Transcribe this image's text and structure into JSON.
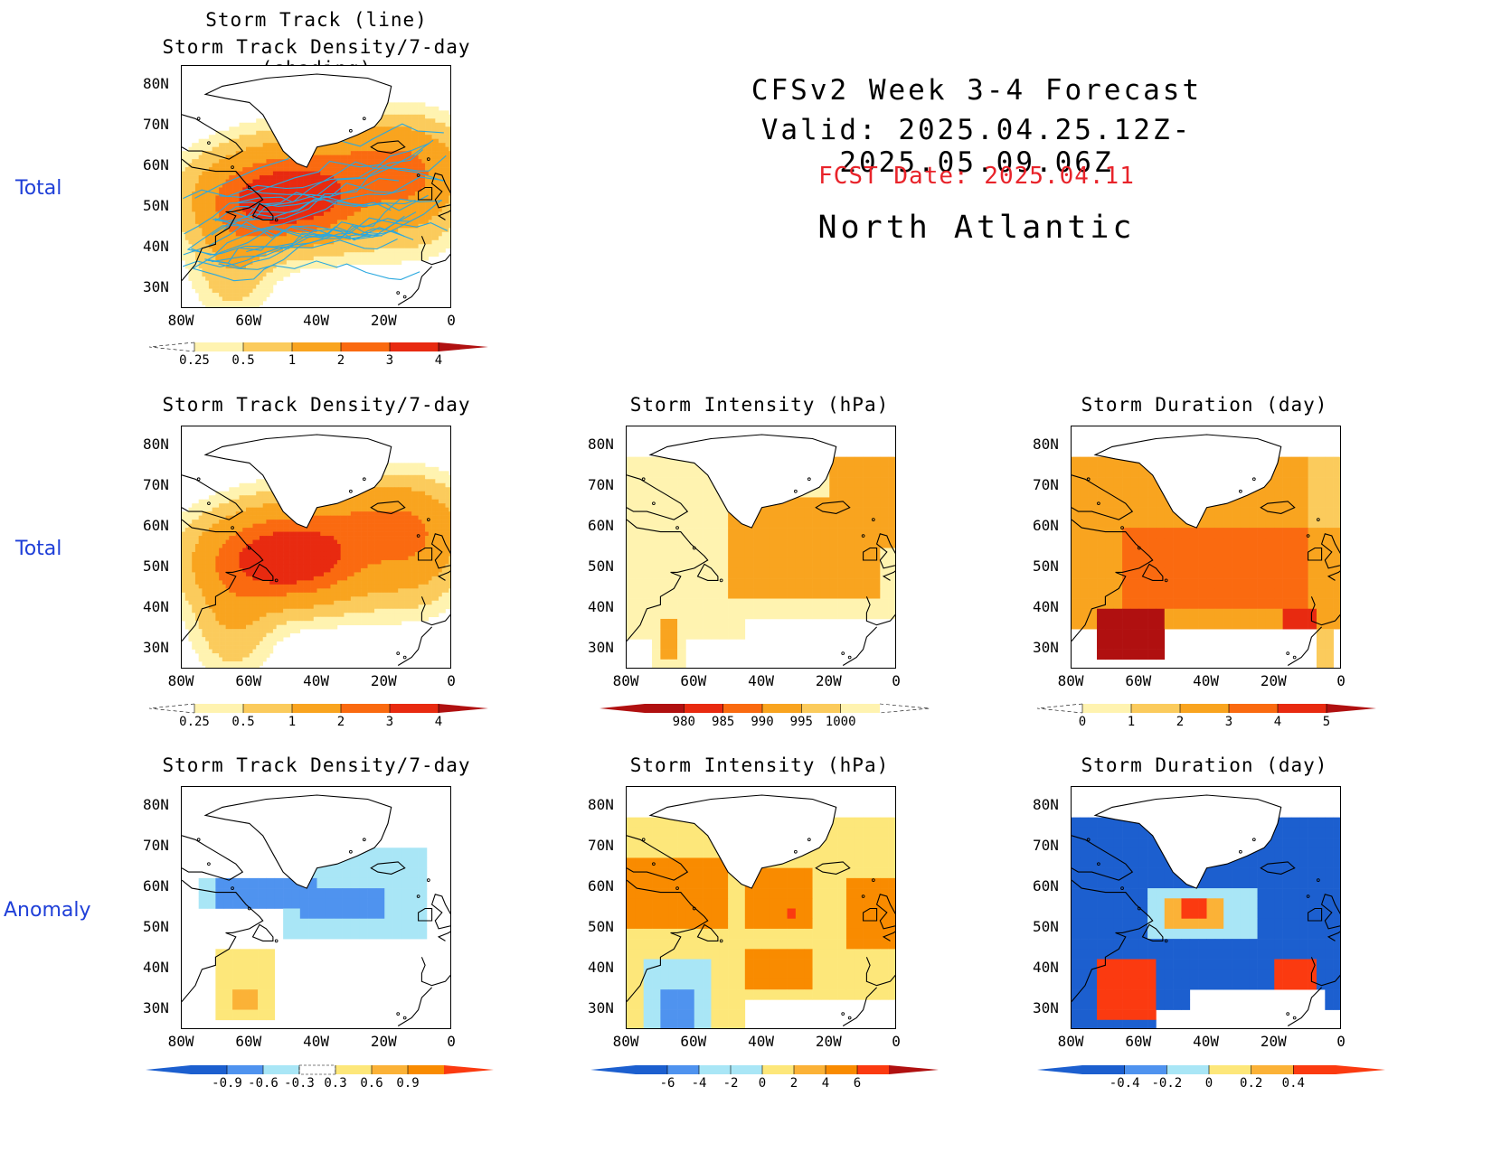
{
  "header": {
    "line1": "CFSv2 Week 3-4 Forecast",
    "line2": "Valid: 2025.04.25.12Z-2025.05.09.06Z",
    "fcst_date": "FCST Date: 2025.04.11",
    "region": "North Atlantic"
  },
  "row_labels": [
    "Total",
    "Total",
    "Anomaly"
  ],
  "axes": {
    "lat_ticks": [
      "80N",
      "70N",
      "60N",
      "50N",
      "40N",
      "30N"
    ],
    "lon_ticks": [
      "80W",
      "60W",
      "40W",
      "20W",
      "0"
    ]
  },
  "colors": {
    "density": [
      "#fff3b0",
      "#fbcb5c",
      "#f9a41f",
      "#fa6a10",
      "#e82a10",
      "#b01010"
    ],
    "intensity": [
      "#b01010",
      "#e82a10",
      "#fa6a10",
      "#f9a41f",
      "#fbcb5c",
      "#fff3b0"
    ],
    "anomaly": [
      "#1c5fcf",
      "#4f93ef",
      "#a9e6f6",
      "#ffffff",
      "#fde77a",
      "#fbb237",
      "#f98b00",
      "#fb3a10",
      "#b01010"
    ],
    "track_line": "#2aa8df"
  },
  "chart_data": [
    {
      "type": "heatmap",
      "id": "track_total",
      "title_line1": "Storm Track (line)",
      "title_line2": "Storm Track Density/7-day (shading)",
      "xlim": [
        -80,
        0
      ],
      "ylim": [
        25,
        85
      ],
      "colorbar_ticks": [
        "0.25",
        "0.5",
        "1",
        "2",
        "3",
        "4"
      ]
    },
    {
      "type": "heatmap",
      "id": "density_total",
      "title": "Storm Track Density/7-day",
      "xlim": [
        -80,
        0
      ],
      "ylim": [
        25,
        85
      ],
      "colorbar_ticks": [
        "0.25",
        "0.5",
        "1",
        "2",
        "3",
        "4"
      ]
    },
    {
      "type": "heatmap",
      "id": "intensity_total",
      "title": "Storm Intensity (hPa)",
      "xlim": [
        -80,
        0
      ],
      "ylim": [
        25,
        85
      ],
      "colorbar_ticks": [
        "980",
        "985",
        "990",
        "995",
        "1000"
      ]
    },
    {
      "type": "heatmap",
      "id": "duration_total",
      "title": "Storm Duration (day)",
      "xlim": [
        -80,
        0
      ],
      "ylim": [
        25,
        85
      ],
      "colorbar_ticks": [
        "0",
        "1",
        "2",
        "3",
        "4",
        "5"
      ]
    },
    {
      "type": "heatmap",
      "id": "density_anom",
      "title": "Storm Track Density/7-day",
      "xlim": [
        -80,
        0
      ],
      "ylim": [
        25,
        85
      ],
      "colorbar_ticks": [
        "-0.9",
        "-0.6",
        "-0.3",
        "0.3",
        "0.6",
        "0.9"
      ]
    },
    {
      "type": "heatmap",
      "id": "intensity_anom",
      "title": "Storm Intensity (hPa)",
      "xlim": [
        -80,
        0
      ],
      "ylim": [
        25,
        85
      ],
      "colorbar_ticks": [
        "-6",
        "-4",
        "-2",
        "0",
        "2",
        "4",
        "6"
      ]
    },
    {
      "type": "heatmap",
      "id": "duration_anom",
      "title": "Storm Duration (day)",
      "xlim": [
        -80,
        0
      ],
      "ylim": [
        25,
        85
      ],
      "colorbar_ticks": [
        "-0.4",
        "-0.2",
        "0",
        "0.2",
        "0.4"
      ]
    }
  ]
}
